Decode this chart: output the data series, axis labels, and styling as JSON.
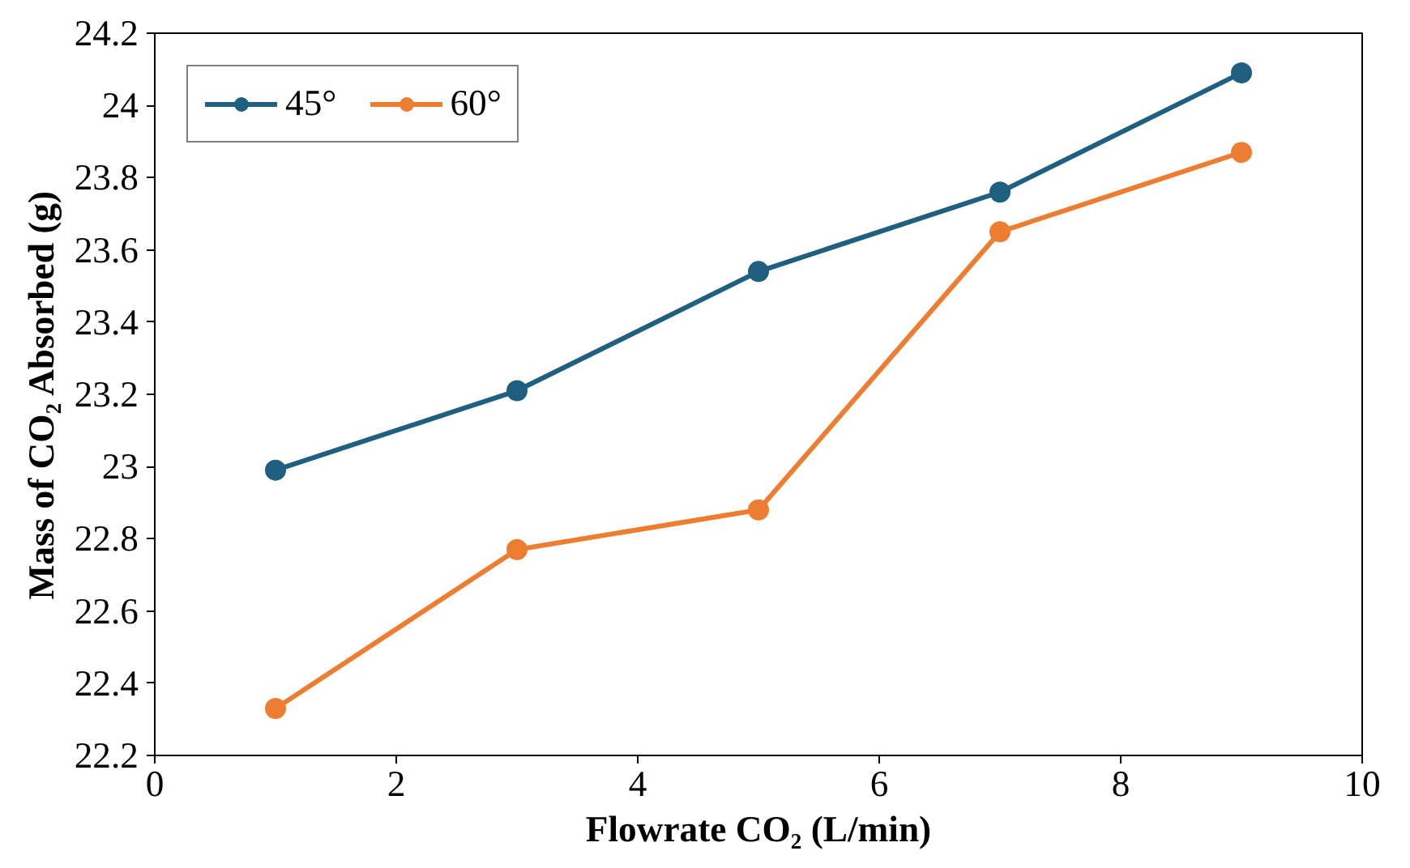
{
  "chart_data": {
    "type": "line",
    "xlabel": "Flowrate CO₂ (L/min)",
    "ylabel": "Mass of CO₂ Absorbed (g)",
    "x": [
      1,
      3,
      5,
      7,
      9
    ],
    "series": [
      {
        "name": "45°",
        "color": "#1f5f7f",
        "values": [
          22.99,
          23.21,
          23.54,
          23.76,
          24.09
        ]
      },
      {
        "name": "60°",
        "color": "#ed7d31",
        "values": [
          22.33,
          22.77,
          22.88,
          23.65,
          23.87
        ]
      }
    ],
    "xlim": [
      0,
      10
    ],
    "xticks": [
      0,
      2,
      4,
      6,
      8,
      10
    ],
    "ylim": [
      22.2,
      24.2
    ],
    "yticks": [
      22.2,
      22.4,
      22.6,
      22.8,
      23,
      23.2,
      23.4,
      23.6,
      23.8,
      24,
      24.2
    ],
    "grid": false,
    "legend": "top left",
    "marker": "circle",
    "line_style": "solid"
  }
}
